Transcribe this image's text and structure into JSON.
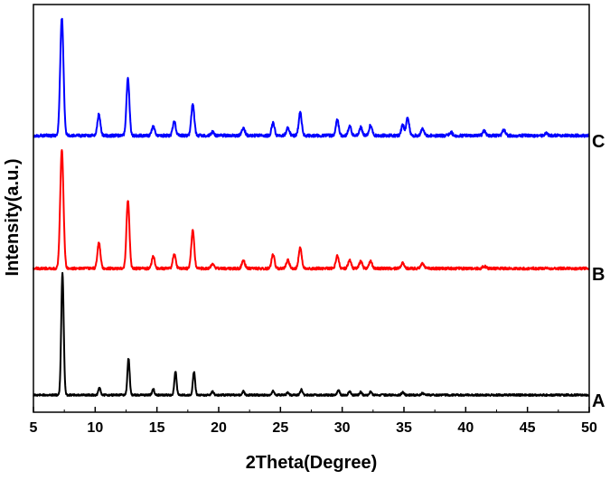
{
  "chart_data": {
    "type": "line",
    "title": "",
    "xlabel": "2Theta(Degree)",
    "ylabel": "Intensity(a.u.)",
    "xlim": [
      5,
      50
    ],
    "x_ticks": [
      5,
      10,
      15,
      20,
      25,
      30,
      35,
      40,
      45,
      50
    ],
    "y_ticks_shown": false,
    "grid": false,
    "legend": "none",
    "series": [
      {
        "name": "A",
        "color": "#000000",
        "baseline": 0,
        "peaks": [
          {
            "x": 7.35,
            "y": 100
          },
          {
            "x": 10.35,
            "y": 6
          },
          {
            "x": 12.7,
            "y": 30
          },
          {
            "x": 14.7,
            "y": 5
          },
          {
            "x": 16.5,
            "y": 19
          },
          {
            "x": 18.0,
            "y": 19
          },
          {
            "x": 19.5,
            "y": 3
          },
          {
            "x": 22.0,
            "y": 3
          },
          {
            "x": 24.4,
            "y": 3.5
          },
          {
            "x": 25.6,
            "y": 2
          },
          {
            "x": 26.7,
            "y": 4.5
          },
          {
            "x": 29.7,
            "y": 4
          },
          {
            "x": 30.6,
            "y": 3
          },
          {
            "x": 31.5,
            "y": 2.5
          },
          {
            "x": 32.3,
            "y": 2.5
          },
          {
            "x": 34.9,
            "y": 2.5
          },
          {
            "x": 36.5,
            "y": 1.5
          }
        ]
      },
      {
        "name": "B",
        "color": "#ff0000",
        "baseline": 0,
        "peaks": [
          {
            "x": 7.3,
            "y": 100
          },
          {
            "x": 10.3,
            "y": 22
          },
          {
            "x": 12.65,
            "y": 57
          },
          {
            "x": 14.7,
            "y": 10
          },
          {
            "x": 16.4,
            "y": 12
          },
          {
            "x": 17.9,
            "y": 32
          },
          {
            "x": 19.5,
            "y": 4
          },
          {
            "x": 22.0,
            "y": 7
          },
          {
            "x": 24.4,
            "y": 12
          },
          {
            "x": 25.6,
            "y": 7
          },
          {
            "x": 26.6,
            "y": 18
          },
          {
            "x": 29.6,
            "y": 11
          },
          {
            "x": 30.6,
            "y": 7
          },
          {
            "x": 31.5,
            "y": 6
          },
          {
            "x": 32.3,
            "y": 6
          },
          {
            "x": 34.9,
            "y": 5
          },
          {
            "x": 36.5,
            "y": 4
          },
          {
            "x": 41.5,
            "y": 2
          }
        ]
      },
      {
        "name": "C",
        "color": "#0000ff",
        "baseline": 0,
        "peaks": [
          {
            "x": 7.3,
            "y": 100
          },
          {
            "x": 10.3,
            "y": 18
          },
          {
            "x": 12.65,
            "y": 48
          },
          {
            "x": 14.7,
            "y": 8
          },
          {
            "x": 16.4,
            "y": 12
          },
          {
            "x": 17.9,
            "y": 27
          },
          {
            "x": 19.5,
            "y": 3
          },
          {
            "x": 22.0,
            "y": 7
          },
          {
            "x": 24.4,
            "y": 11
          },
          {
            "x": 25.6,
            "y": 7
          },
          {
            "x": 26.6,
            "y": 20
          },
          {
            "x": 29.6,
            "y": 13
          },
          {
            "x": 30.6,
            "y": 8
          },
          {
            "x": 31.5,
            "y": 7
          },
          {
            "x": 32.3,
            "y": 9
          },
          {
            "x": 34.9,
            "y": 9
          },
          {
            "x": 35.3,
            "y": 15
          },
          {
            "x": 36.5,
            "y": 6
          },
          {
            "x": 38.8,
            "y": 3
          },
          {
            "x": 41.5,
            "y": 4
          },
          {
            "x": 43.1,
            "y": 5
          },
          {
            "x": 46.5,
            "y": 2
          }
        ]
      }
    ]
  }
}
